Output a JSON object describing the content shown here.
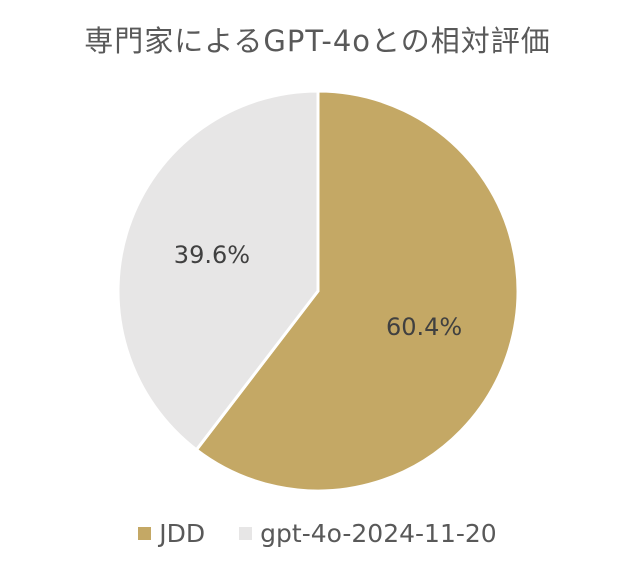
{
  "chart_data": {
    "type": "pie",
    "title": "専門家によるGPT-4oとの相対評価",
    "categories": [
      "JDD",
      "gpt-4o-2024-11-20"
    ],
    "values": [
      60.4,
      39.6
    ],
    "data_labels": [
      "60.4%",
      "39.6%"
    ],
    "colors": [
      "#C4A865",
      "#E7E6E6"
    ],
    "start_angle_deg": 0,
    "direction": "clockwise",
    "legend_position": "bottom"
  }
}
